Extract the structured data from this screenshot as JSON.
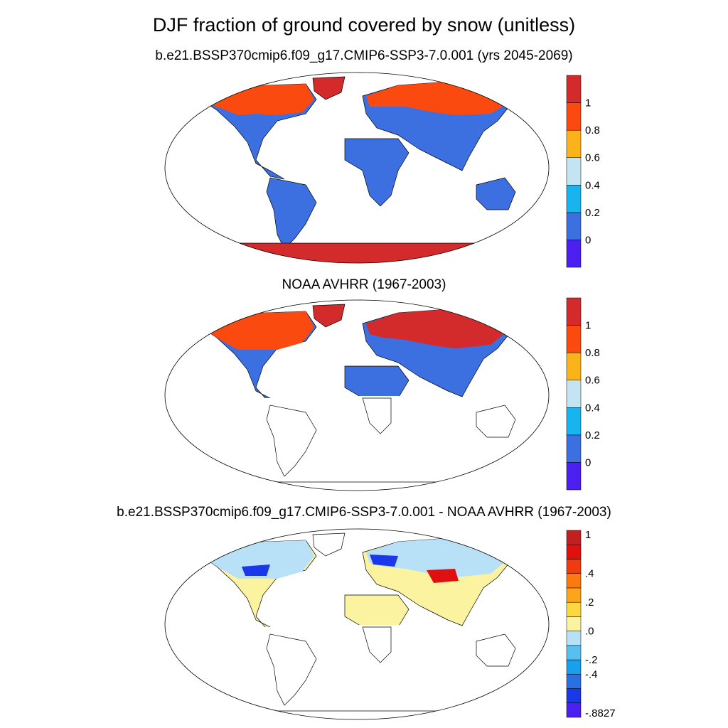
{
  "title": "DJF fraction of ground covered by snow (unitless)",
  "panels": [
    {
      "id": "model",
      "subtitle": "b.e21.BSSP370cmip6.f09_g17.CMIP6-SSP3-7.0.001 (yrs 2045-2069)",
      "colorbar": {
        "colors": [
          "#4a1ff0",
          "#3c6fe0",
          "#18b4f0",
          "#c4e4f4",
          "#fbb31c",
          "#fa4a10",
          "#d32b2b"
        ],
        "tick_labels": [
          "0",
          "0.2",
          "0.4",
          "0.6",
          "0.8",
          "1"
        ]
      }
    },
    {
      "id": "obs",
      "subtitle": "NOAA AVHRR (1967-2003)",
      "colorbar": {
        "colors": [
          "#4a1ff0",
          "#3c6fe0",
          "#18b4f0",
          "#c4e4f4",
          "#fbb31c",
          "#fa4a10",
          "#d32b2b"
        ],
        "tick_labels": [
          "0",
          "0.2",
          "0.4",
          "0.6",
          "0.8",
          "1"
        ]
      }
    },
    {
      "id": "diff",
      "subtitle": "b.e21.BSSP370cmip6.f09_g17.CMIP6-SSP3-7.0.001 - NOAA AVHRR (1967-2003)",
      "colorbar": {
        "colors": [
          "#4a1ff0",
          "#1a38e8",
          "#2a70e0",
          "#18a0ee",
          "#58c0f0",
          "#b8e0f6",
          "#fbf3a0",
          "#fcd840",
          "#fca41a",
          "#fa7a10",
          "#f23a10",
          "#e01010",
          "#c02020"
        ],
        "tick_labels": [
          "-.8827",
          "-.4",
          "-.2",
          ".0",
          ".2",
          ".4",
          "1"
        ]
      }
    }
  ],
  "map_colors": {
    "land_outline": "#000000",
    "ocean": "#ffffff",
    "snow_high": "#fa4a10",
    "snow_full": "#d32b2b",
    "snow_mid": "#18b4f0",
    "snow_none": "#3c6fe0",
    "diff_pos": "#fbf3a0",
    "diff_neg_light": "#b8e0f6",
    "diff_neg": "#2a70e0",
    "diff_neg_strong": "#1a38e8",
    "diff_red": "#e01010"
  }
}
